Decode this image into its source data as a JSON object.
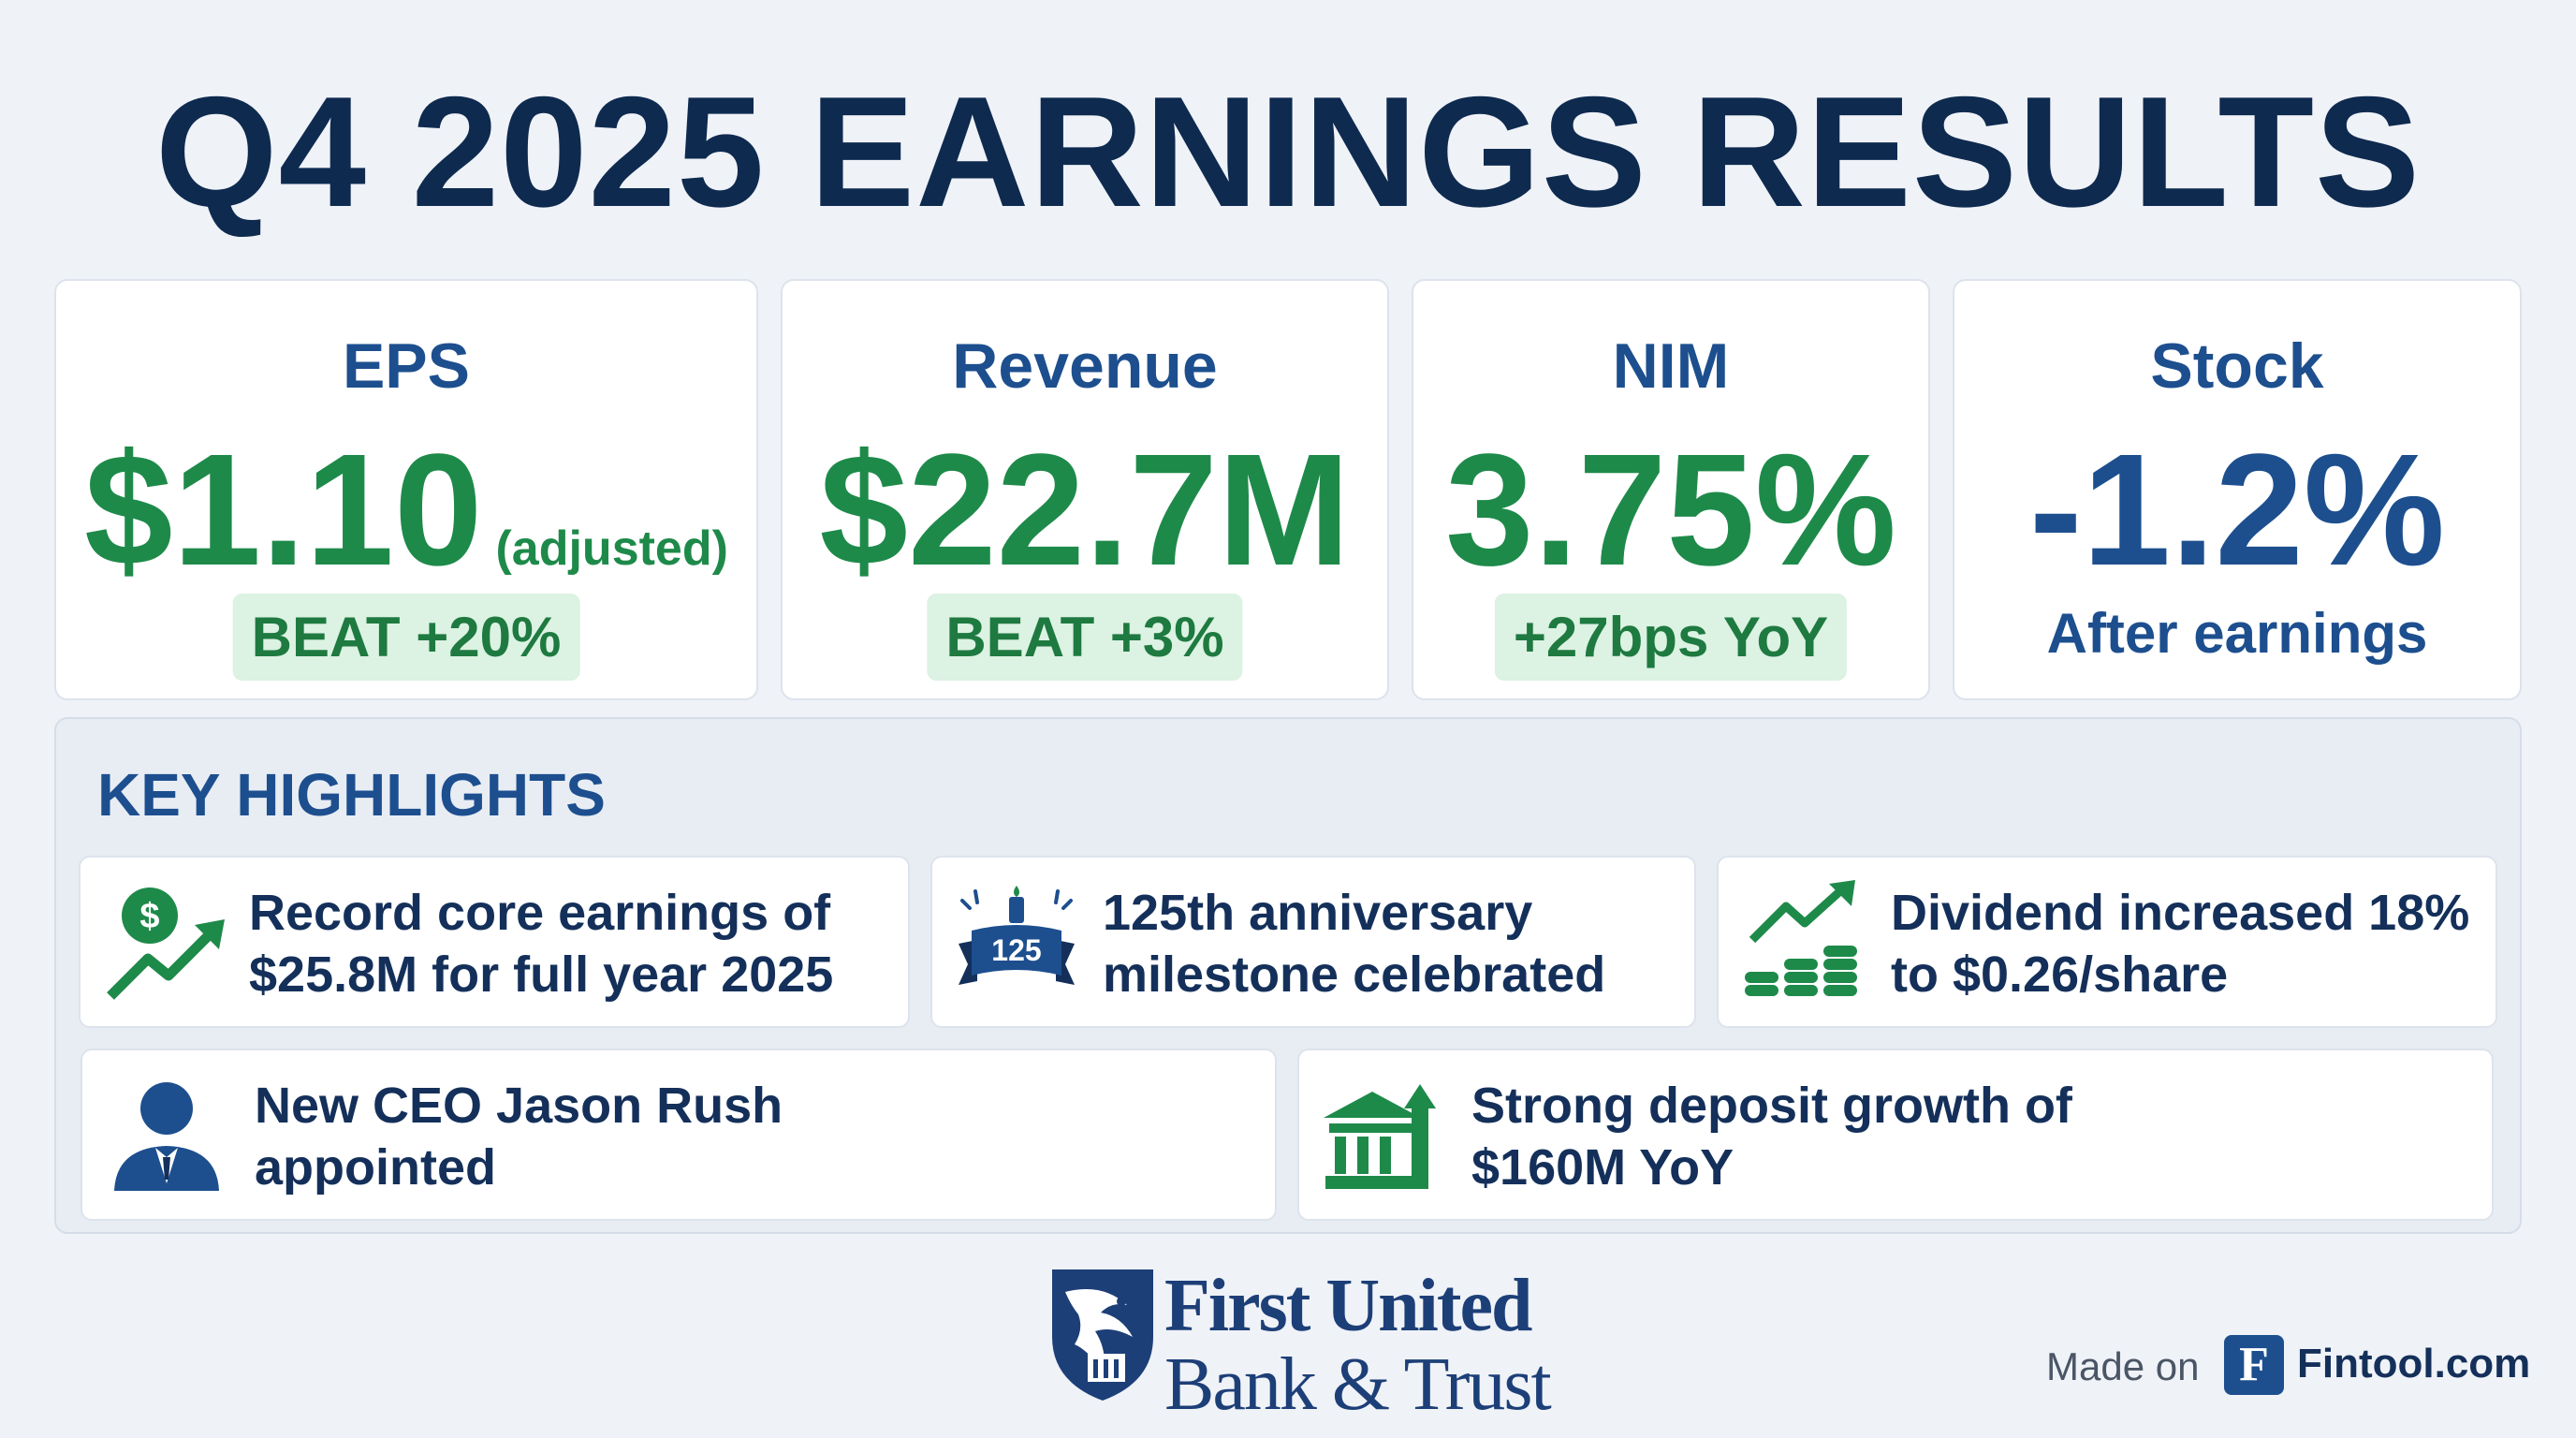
{
  "title": "Q4 2025 EARNINGS RESULTS",
  "metrics": [
    {
      "label": "EPS",
      "value": "$1.10",
      "suffix": "(adjusted)",
      "badge": "BEAT +20%"
    },
    {
      "label": "Revenue",
      "value": "$22.7M",
      "badge": "BEAT +3%"
    },
    {
      "label": "NIM",
      "value": "3.75%",
      "badge": "+27bps YoY"
    },
    {
      "label": "Stock",
      "value": "-1.2%",
      "note": "After earnings"
    }
  ],
  "highlights": {
    "title": "KEY HIGHLIGHTS",
    "items": [
      {
        "icon": "dollar-growth-icon",
        "line1": "Record core earnings of",
        "line2": "$25.8M for full year 2025"
      },
      {
        "icon": "anniversary-banner-icon",
        "line1": "125th anniversary",
        "line2": "milestone celebrated",
        "icon_text": "125"
      },
      {
        "icon": "coins-growth-icon",
        "line1": "Dividend increased 18%",
        "line2": "to $0.26/share"
      },
      {
        "icon": "person-icon",
        "line1": "New CEO Jason Rush",
        "line2": "appointed"
      },
      {
        "icon": "bank-growth-icon",
        "line1": "Strong deposit growth of",
        "line2": "$160M YoY"
      }
    ]
  },
  "brand": {
    "line1": "First United",
    "line2": "Bank & Trust"
  },
  "footer": {
    "made_on": "Made on",
    "logo_letter": "F",
    "site": "Fintool.com"
  },
  "colors": {
    "navy": "#0e2a4f",
    "blue": "#1d4f8f",
    "green": "#1e8a4a",
    "pill_bg": "#dcf2e2"
  }
}
